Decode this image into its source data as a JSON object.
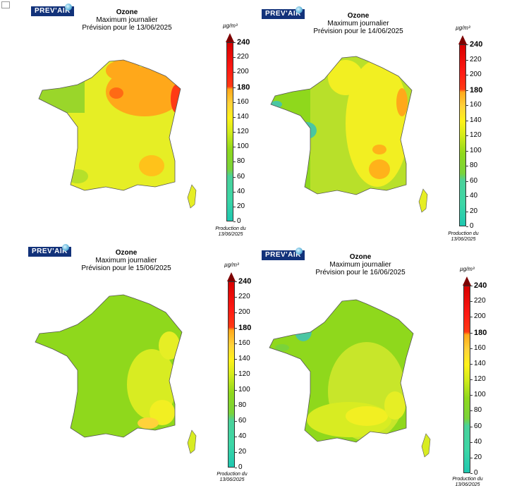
{
  "logo_text": "PREV'AIR",
  "colors": {
    "teal": "#1fc7b0",
    "green": "#8fd81c",
    "yellow": "#fff21a",
    "orange": "#ffa81a",
    "red": "#ff1a14",
    "dark_red": "#7d0000"
  },
  "colorbar": {
    "unit": "µg/m³",
    "ticks": [
      "240",
      "220",
      "200",
      "180",
      "160",
      "140",
      "120",
      "100",
      "80",
      "60",
      "40",
      "20",
      "0"
    ],
    "bold_ticks": [
      "240",
      "180"
    ]
  },
  "panels": [
    {
      "title": "Ozone",
      "subtitle": "Maximum journalier",
      "forecast": "Prévision pour le 13/06/2025",
      "production": [
        "Production du",
        "13/06/2025"
      ]
    },
    {
      "title": "Ozone",
      "subtitle": "Maximum journalier",
      "forecast": "Prévision pour le 14/06/2025",
      "production": [
        "Production du",
        "13/06/2025"
      ]
    },
    {
      "title": "Ozone",
      "subtitle": "Maximum journalier",
      "forecast": "Prévision pour le 15/06/2025",
      "production": [
        "Production du",
        "13/06/2025"
      ]
    },
    {
      "title": "Ozone",
      "subtitle": "Maximum journalier",
      "forecast": "Prévision pour le 16/06/2025",
      "production": [
        "Production du",
        "13/06/2025"
      ]
    }
  ]
}
